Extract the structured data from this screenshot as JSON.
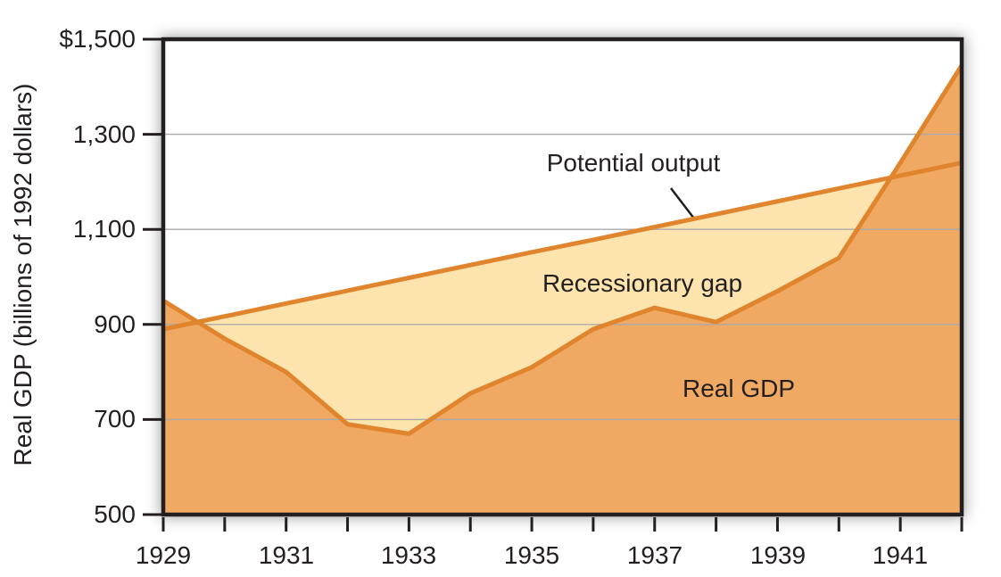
{
  "chart_data": {
    "type": "area",
    "title": "",
    "xlabel": "",
    "ylabel": "Real GDP (billions of 1992 dollars)",
    "xlim": [
      1929,
      1942
    ],
    "ylim": [
      500,
      1500
    ],
    "grid": "horizontal gridlines at 700, 900, 1100, 1300",
    "legend_position": "none (direct labels on chart)",
    "x": [
      1929,
      1930,
      1931,
      1932,
      1933,
      1934,
      1935,
      1936,
      1937,
      1938,
      1939,
      1940,
      1941,
      1942
    ],
    "series": [
      {
        "name": "Potential output",
        "type": "line",
        "values": [
          890,
          917,
          944,
          971,
          998,
          1025,
          1052,
          1078,
          1105,
          1132,
          1159,
          1186,
          1213,
          1240
        ]
      },
      {
        "name": "Real GDP",
        "type": "area",
        "values": [
          950,
          870,
          800,
          690,
          670,
          755,
          810,
          890,
          935,
          905,
          970,
          1040,
          1240,
          1445
        ]
      }
    ],
    "y_axis": {
      "tick_values": [
        1500,
        1300,
        1100,
        900,
        700,
        500
      ],
      "tick_labels": [
        "$1,500",
        "1,300",
        "1,100",
        "900",
        "700",
        "500"
      ]
    },
    "x_axis": {
      "tick_values": [
        1929,
        1931,
        1933,
        1935,
        1937,
        1939,
        1941
      ],
      "tick_labels": [
        "1929",
        "1931",
        "1933",
        "1935",
        "1937",
        "1939",
        "1941"
      ]
    },
    "annotations": [
      {
        "text": "Potential output",
        "points_to": "potential output line"
      },
      {
        "text": "Recessionary gap",
        "describes": "cream area between potential output and real GDP"
      },
      {
        "text": "Real GDP",
        "describes": "orange area under real GDP line"
      }
    ],
    "colors": {
      "line_stroke": "#E0852D",
      "gap_fill": "#FDE3AD",
      "gdp_fill": "#F0A963",
      "frame": "#231F20",
      "gridline": "#AAAAAA",
      "text": "#231F20"
    }
  }
}
